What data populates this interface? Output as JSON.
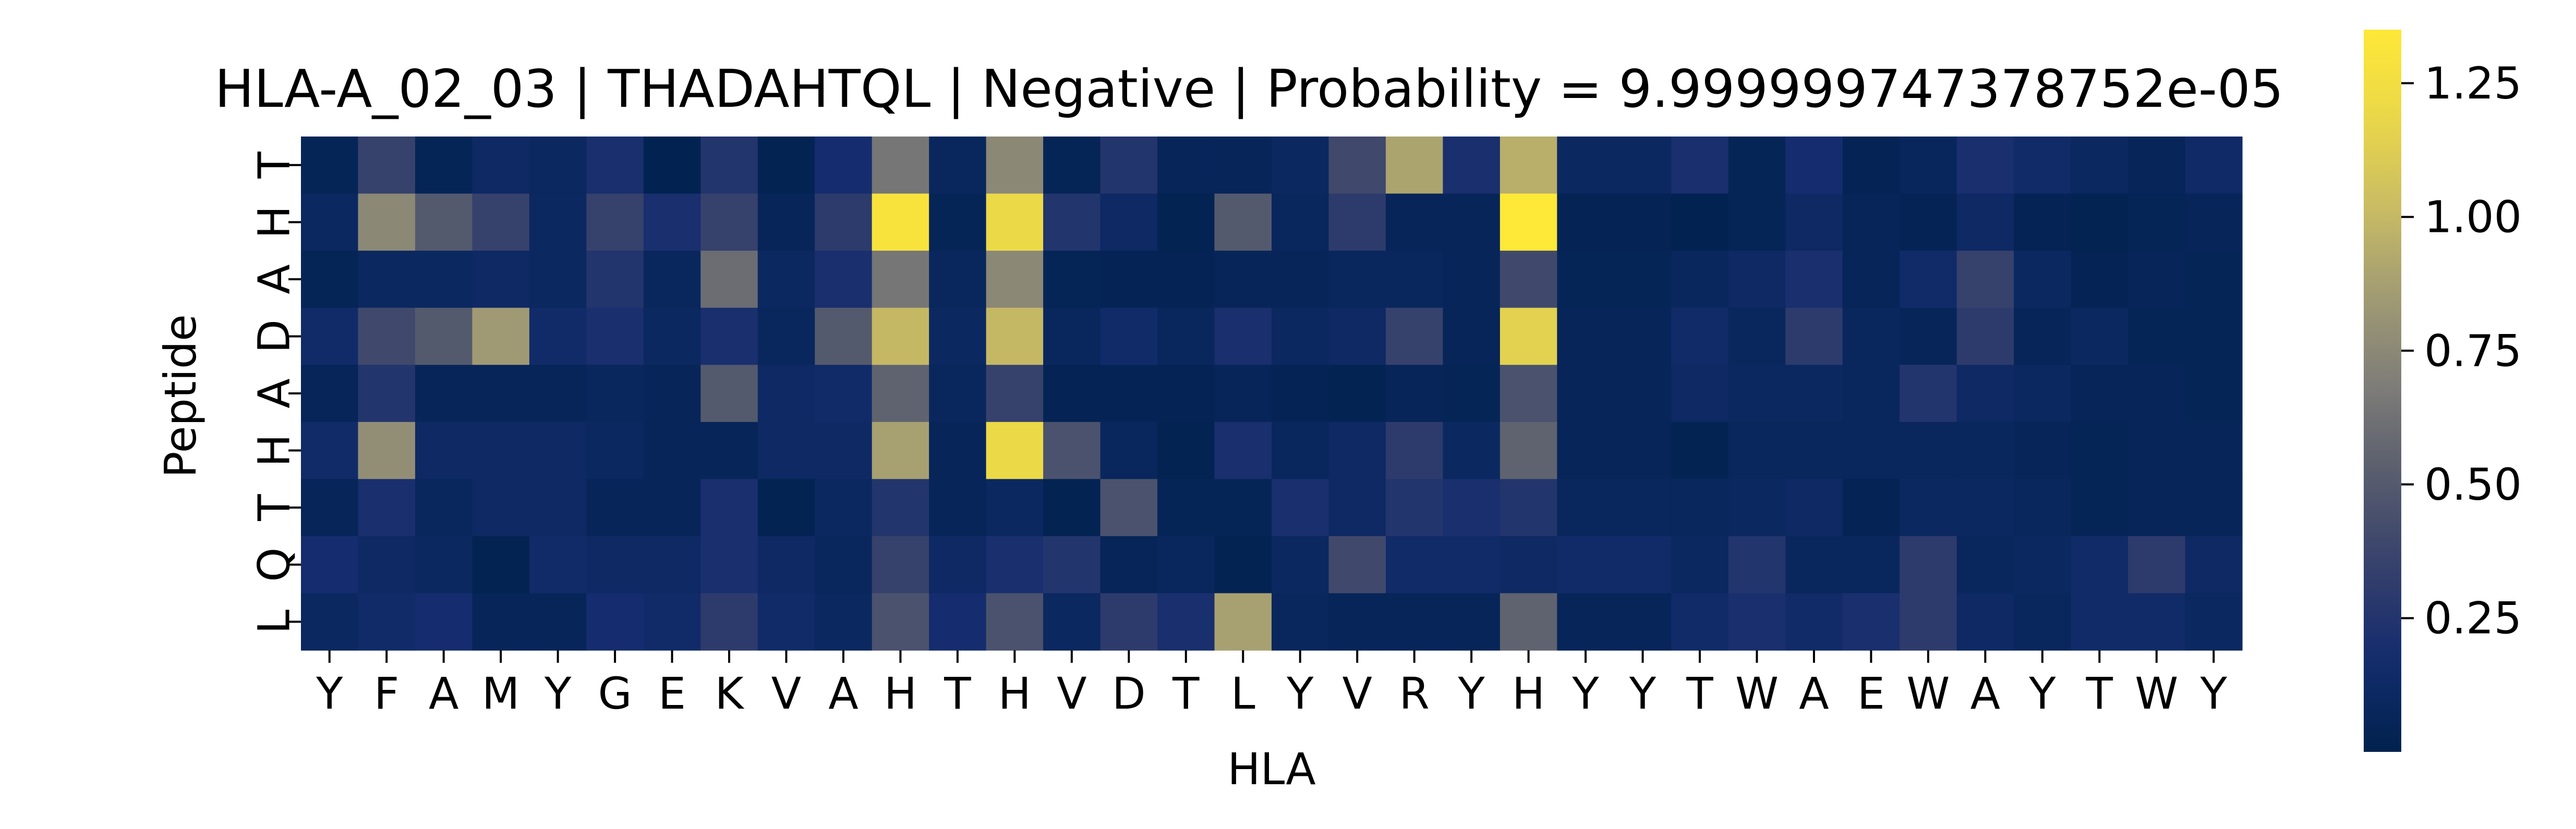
{
  "chart_data": {
    "type": "heatmap",
    "title": "HLA-A_02_03 | THADAHTQL | Negative | Probability = 9.999999747378752e-05",
    "xlabel": "HLA",
    "ylabel": "Peptide",
    "x_categories": [
      "Y",
      "F",
      "A",
      "M",
      "Y",
      "G",
      "E",
      "K",
      "V",
      "A",
      "H",
      "T",
      "H",
      "V",
      "D",
      "T",
      "L",
      "Y",
      "V",
      "R",
      "Y",
      "H",
      "Y",
      "Y",
      "T",
      "W",
      "A",
      "E",
      "W",
      "A",
      "Y",
      "T",
      "W",
      "Y"
    ],
    "y_categories": [
      "T",
      "H",
      "A",
      "D",
      "A",
      "H",
      "T",
      "Q",
      "L"
    ],
    "colormap": "cividis",
    "vmin": 0.0,
    "vmax": 1.35,
    "colorbar_ticks": [
      0.25,
      0.5,
      0.75,
      1.0,
      1.25
    ],
    "colorbar_tick_labels": [
      "0.25",
      "0.50",
      "0.75",
      "1.00",
      "1.25"
    ],
    "values": [
      [
        0.05,
        0.35,
        0.05,
        0.12,
        0.1,
        0.2,
        0.02,
        0.25,
        0.03,
        0.18,
        0.65,
        0.08,
        0.75,
        0.05,
        0.25,
        0.06,
        0.06,
        0.1,
        0.4,
        0.9,
        0.2,
        0.95,
        0.1,
        0.1,
        0.2,
        0.05,
        0.18,
        0.04,
        0.07,
        0.2,
        0.15,
        0.1,
        0.06,
        0.14
      ],
      [
        0.1,
        0.75,
        0.5,
        0.35,
        0.1,
        0.35,
        0.2,
        0.35,
        0.06,
        0.3,
        1.3,
        0.05,
        1.2,
        0.25,
        0.12,
        0.03,
        0.5,
        0.08,
        0.3,
        0.06,
        0.06,
        1.37,
        0.04,
        0.04,
        0.02,
        0.05,
        0.12,
        0.06,
        0.04,
        0.12,
        0.04,
        0.03,
        0.05,
        0.06
      ],
      [
        0.05,
        0.1,
        0.1,
        0.12,
        0.1,
        0.25,
        0.08,
        0.6,
        0.1,
        0.2,
        0.65,
        0.08,
        0.75,
        0.05,
        0.04,
        0.04,
        0.06,
        0.06,
        0.08,
        0.08,
        0.06,
        0.4,
        0.05,
        0.05,
        0.08,
        0.12,
        0.2,
        0.06,
        0.15,
        0.35,
        0.1,
        0.04,
        0.06,
        0.05
      ],
      [
        0.15,
        0.4,
        0.5,
        0.85,
        0.15,
        0.2,
        0.1,
        0.2,
        0.08,
        0.5,
        1.0,
        0.1,
        1.0,
        0.08,
        0.15,
        0.08,
        0.2,
        0.1,
        0.12,
        0.35,
        0.06,
        1.15,
        0.06,
        0.06,
        0.15,
        0.08,
        0.3,
        0.08,
        0.06,
        0.3,
        0.06,
        0.1,
        0.05,
        0.05
      ],
      [
        0.06,
        0.25,
        0.06,
        0.06,
        0.06,
        0.08,
        0.06,
        0.5,
        0.12,
        0.15,
        0.55,
        0.08,
        0.35,
        0.04,
        0.04,
        0.04,
        0.06,
        0.04,
        0.03,
        0.06,
        0.05,
        0.45,
        0.06,
        0.06,
        0.12,
        0.1,
        0.1,
        0.08,
        0.25,
        0.12,
        0.1,
        0.06,
        0.06,
        0.05
      ],
      [
        0.15,
        0.78,
        0.12,
        0.12,
        0.12,
        0.1,
        0.06,
        0.06,
        0.12,
        0.12,
        0.88,
        0.06,
        1.2,
        0.45,
        0.08,
        0.03,
        0.2,
        0.08,
        0.12,
        0.3,
        0.1,
        0.55,
        0.06,
        0.06,
        0.03,
        0.08,
        0.08,
        0.08,
        0.08,
        0.08,
        0.06,
        0.05,
        0.06,
        0.06
      ],
      [
        0.06,
        0.2,
        0.08,
        0.12,
        0.12,
        0.06,
        0.06,
        0.2,
        0.03,
        0.1,
        0.25,
        0.06,
        0.1,
        0.03,
        0.45,
        0.05,
        0.05,
        0.2,
        0.12,
        0.25,
        0.2,
        0.25,
        0.08,
        0.08,
        0.08,
        0.1,
        0.12,
        0.04,
        0.1,
        0.1,
        0.08,
        0.05,
        0.06,
        0.06
      ],
      [
        0.18,
        0.12,
        0.1,
        0.03,
        0.15,
        0.12,
        0.12,
        0.2,
        0.12,
        0.08,
        0.35,
        0.12,
        0.2,
        0.25,
        0.06,
        0.08,
        0.03,
        0.1,
        0.4,
        0.15,
        0.15,
        0.12,
        0.15,
        0.15,
        0.1,
        0.25,
        0.08,
        0.08,
        0.3,
        0.08,
        0.1,
        0.15,
        0.3,
        0.12
      ],
      [
        0.1,
        0.15,
        0.18,
        0.06,
        0.06,
        0.18,
        0.15,
        0.3,
        0.15,
        0.1,
        0.45,
        0.18,
        0.45,
        0.1,
        0.3,
        0.2,
        0.88,
        0.08,
        0.06,
        0.06,
        0.06,
        0.55,
        0.06,
        0.06,
        0.15,
        0.2,
        0.15,
        0.2,
        0.3,
        0.12,
        0.08,
        0.15,
        0.15,
        0.1
      ]
    ]
  }
}
